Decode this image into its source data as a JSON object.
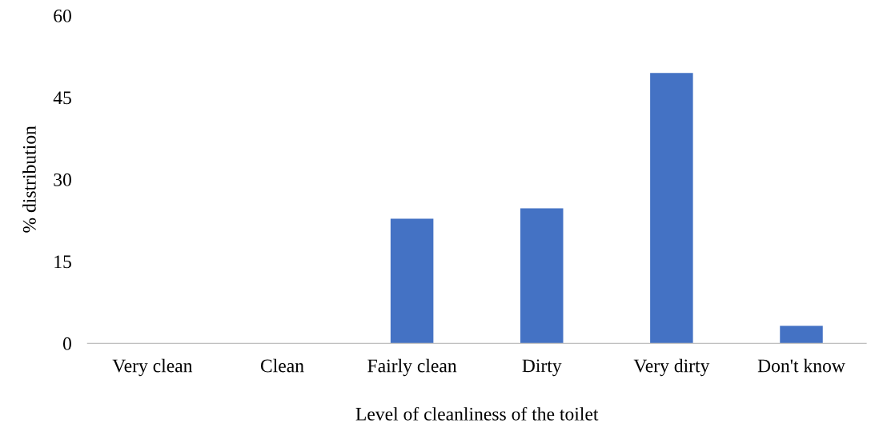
{
  "chart_data": {
    "type": "bar",
    "xlabel": "Level of cleanliness of the toilet",
    "ylabel": "% distribution",
    "categories": [
      "Very clean",
      "Clean",
      "Fairly clean",
      "Dirty",
      "Very dirty",
      "Don't know"
    ],
    "values": [
      0,
      0,
      22.8,
      24.7,
      49.5,
      3.2
    ],
    "color": "#4472c4",
    "ylim": [
      0,
      60
    ],
    "yticks": [
      0,
      15,
      30,
      45,
      60
    ],
    "grid": false,
    "legend": false
  }
}
